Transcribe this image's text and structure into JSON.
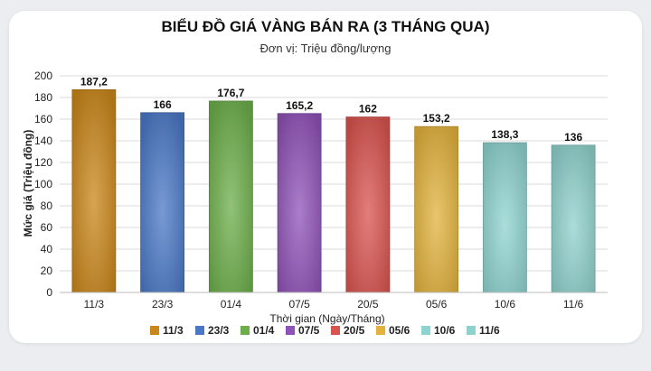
{
  "chart_data": {
    "type": "bar",
    "title": "BIỂU ĐỒ GIÁ VÀNG BÁN RA (3 THÁNG QUA)",
    "subtitle": "Đơn vị: Triệu đồng/lượng",
    "xlabel": "Thời gian (Ngày/Tháng)",
    "ylabel": "Mức giá (Triệu đồng)",
    "ylim": [
      0,
      200
    ],
    "yticks": [
      "0",
      "20",
      "40",
      "60",
      "80",
      "100",
      "120",
      "140",
      "160",
      "180",
      "200"
    ],
    "categories": [
      "11/3",
      "23/3",
      "01/4",
      "07/5",
      "20/5",
      "05/6",
      "10/6",
      "11/6"
    ],
    "values": [
      187.2,
      166,
      176.7,
      165.2,
      162,
      153.2,
      138.3,
      136
    ],
    "value_labels": [
      "187,2",
      "166",
      "176,7",
      "165,2",
      "162",
      "153,2",
      "138,3",
      "136"
    ],
    "colors": [
      "#c9861a",
      "#4a78c6",
      "#6cae4a",
      "#8f52b8",
      "#d9534f",
      "#e2b23c",
      "#8ed3cf",
      "#8fd1cc"
    ],
    "grid": true,
    "legend": {
      "placement": "bottom",
      "entries": [
        "11/3",
        "23/3",
        "01/4",
        "07/5",
        "20/5",
        "05/6",
        "10/6",
        "11/6"
      ]
    }
  }
}
